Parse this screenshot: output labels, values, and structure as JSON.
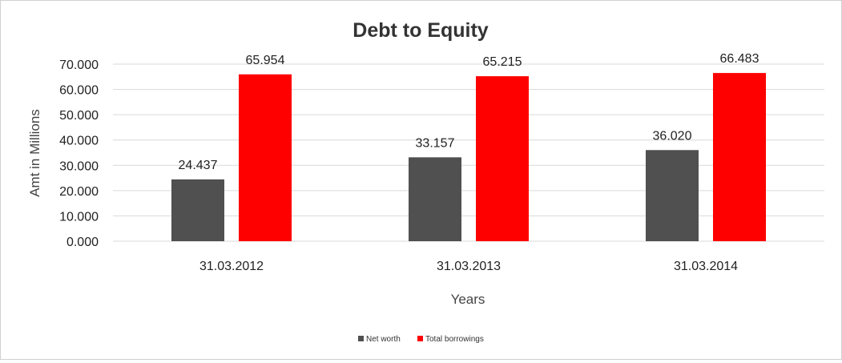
{
  "chart_data": {
    "type": "bar",
    "title": "Debt to Equity",
    "xlabel": "Years",
    "ylabel": "Amt in Millions",
    "categories": [
      "31.03.2012",
      "31.03.2013",
      "31.03.2014"
    ],
    "series": [
      {
        "name": "Net worth",
        "values": [
          24.437,
          33.157,
          36.02
        ],
        "labels": [
          "24.437",
          "33.157",
          "36.020"
        ],
        "color": "#505050"
      },
      {
        "name": "Total borrowings",
        "values": [
          65.954,
          65.215,
          66.483
        ],
        "labels": [
          "65.954",
          "65.215",
          "66.483"
        ],
        "color": "#ff0000"
      }
    ],
    "ylim": [
      0,
      70
    ],
    "yticks": [
      0,
      10,
      20,
      30,
      40,
      50,
      60,
      70
    ],
    "ytick_labels": [
      "0.000",
      "10.000",
      "20.000",
      "30.000",
      "40.000",
      "50.000",
      "60.000",
      "70.000"
    ],
    "grid": true,
    "legend_position": "bottom"
  }
}
